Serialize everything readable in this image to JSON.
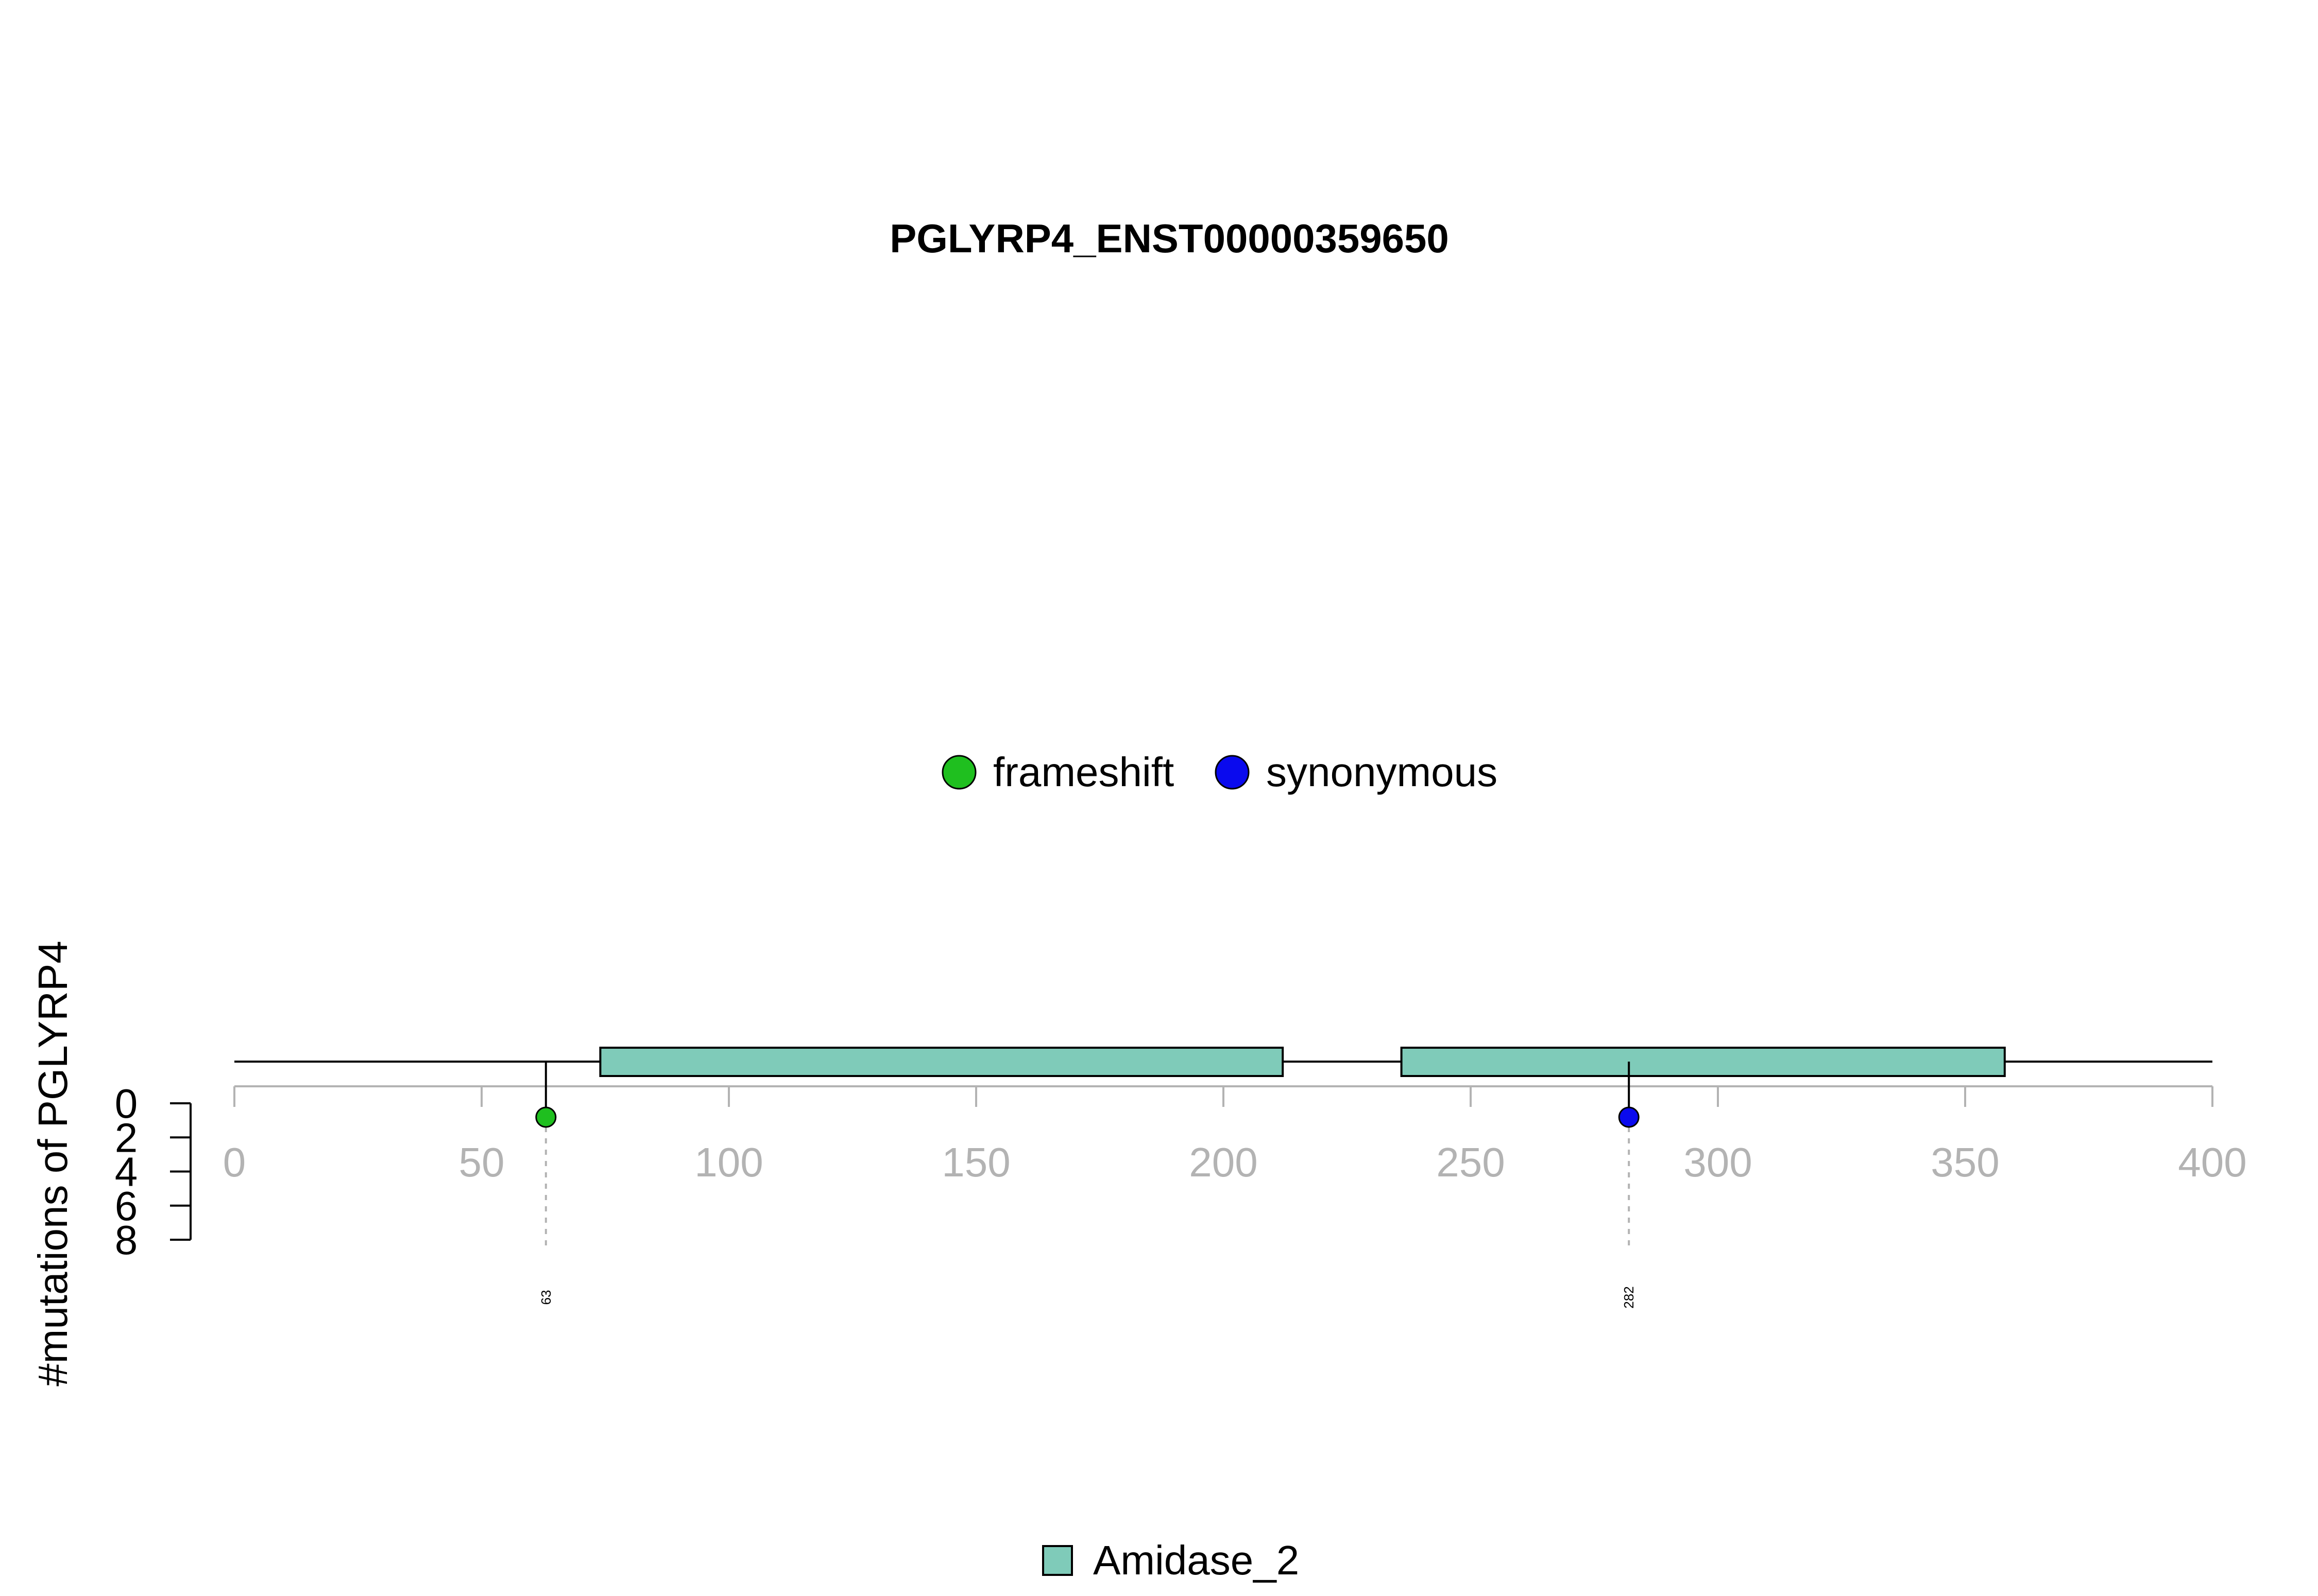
{
  "chart_data": {
    "type": "lollipop",
    "title": "PGLYRP4_ENST00000359650",
    "ylabel": "#mutations of PGLYRP4",
    "protein_length": 400,
    "xlim": [
      0,
      400
    ],
    "x_ticks": [
      0,
      50,
      100,
      150,
      200,
      250,
      300,
      350,
      400
    ],
    "ylim": [
      0,
      8
    ],
    "y_ticks": [
      0,
      2,
      4,
      6,
      8
    ],
    "mutation_legend": [
      {
        "name": "frameshift",
        "color": "#1fbf1f"
      },
      {
        "name": "synonymous",
        "color": "#0a0aee"
      }
    ],
    "mutations": [
      {
        "position": 63,
        "count": 1,
        "type": "frameshift",
        "label": "63",
        "color": "#1fbf1f"
      },
      {
        "position": 282,
        "count": 1,
        "type": "synonymous",
        "label": "282",
        "color": "#0a0aee"
      }
    ],
    "domains": [
      {
        "name": "Amidase_2",
        "start": 74,
        "end": 212,
        "color": "#7fcbb9"
      },
      {
        "name": "Amidase_2",
        "start": 236,
        "end": 358,
        "color": "#7fcbb9"
      }
    ],
    "domain_legend": [
      {
        "name": "Amidase_2",
        "color": "#7fcbb9"
      }
    ]
  }
}
